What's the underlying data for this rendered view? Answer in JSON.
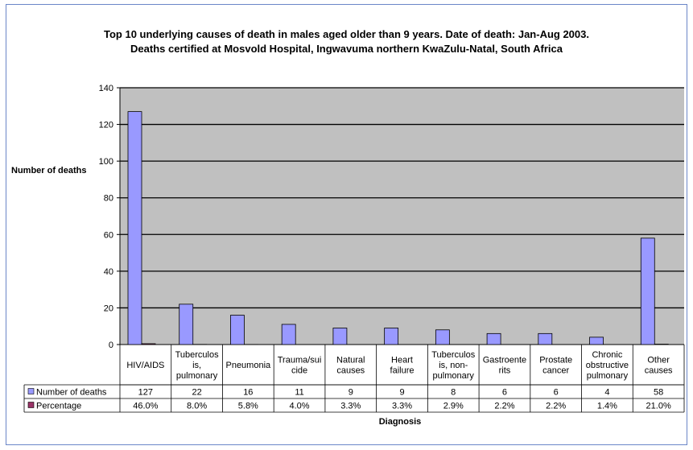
{
  "chart_data": {
    "type": "bar",
    "title": "Top 10 underlying causes of death in males aged older than 9 years. Date of death: Jan-Aug 2003.",
    "subtitle": "Deaths certified at Mosvold Hospital, Ingwavuma northern KwaZulu-Natal, South Africa",
    "xlabel": "Diagnosis",
    "ylabel": "Number of deaths",
    "ylim": [
      0,
      140
    ],
    "yticks": [
      0,
      20,
      40,
      60,
      80,
      100,
      120,
      140
    ],
    "grid": true,
    "legend": "data-table",
    "categories": [
      [
        "HIV/AIDS"
      ],
      [
        "Tuberculos",
        "is,",
        "pulmonary"
      ],
      [
        "Pneumonia"
      ],
      [
        "Trauma/sui",
        "cide"
      ],
      [
        "Natural",
        "causes"
      ],
      [
        "Heart",
        "failure"
      ],
      [
        "Tuberculos",
        "is, non-",
        "pulmonary"
      ],
      [
        "Gastroente",
        "rits"
      ],
      [
        "Prostate",
        "cancer"
      ],
      [
        "Chronic",
        "obstructive",
        "pulmonary"
      ],
      [
        "Other",
        "causes"
      ]
    ],
    "series": [
      {
        "name": "Number of deaths",
        "color": "#9999ff",
        "values": [
          127,
          22,
          16,
          11,
          9,
          9,
          8,
          6,
          6,
          4,
          58
        ],
        "labels": [
          "127",
          "22",
          "16",
          "11",
          "9",
          "9",
          "8",
          "6",
          "6",
          "4",
          "58"
        ]
      },
      {
        "name": "Percentage",
        "color": "#993366",
        "values": [
          0.46,
          0.08,
          0.058,
          0.04,
          0.033,
          0.033,
          0.029,
          0.022,
          0.022,
          0.014,
          0.21
        ],
        "labels": [
          "46.0%",
          "8.0%",
          "5.8%",
          "4.0%",
          "3.3%",
          "3.3%",
          "2.9%",
          "2.2%",
          "2.2%",
          "1.4%",
          "21.0%"
        ]
      }
    ],
    "colors": {
      "plot_background": "#c0c0c0",
      "frame_border": "#6b86c8",
      "bar_border": "#000000"
    }
  }
}
